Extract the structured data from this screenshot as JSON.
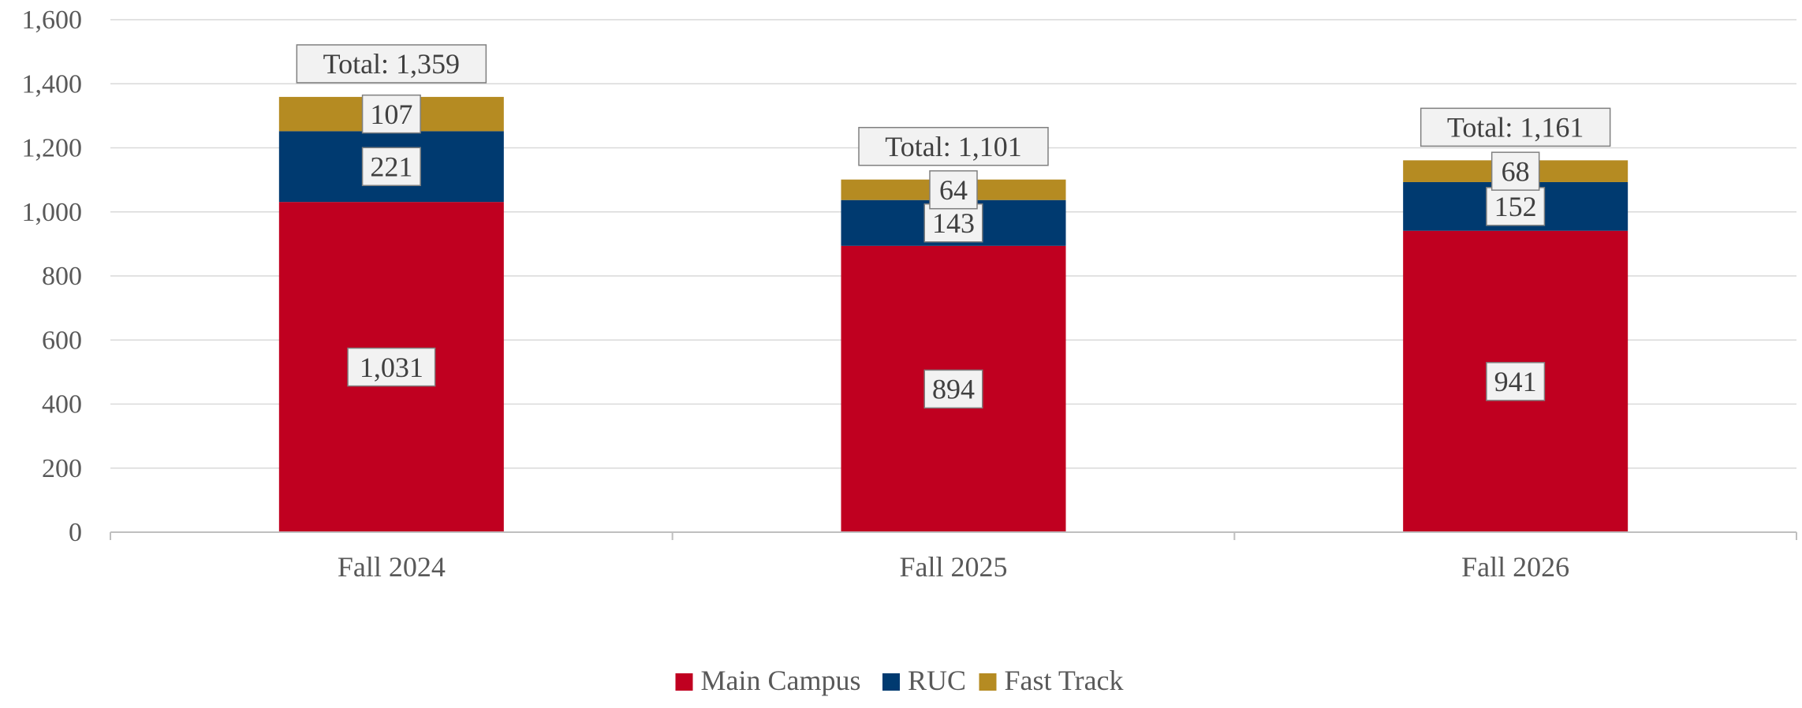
{
  "chart_data": {
    "type": "bar",
    "stacked": true,
    "title": "",
    "xlabel": "",
    "ylabel": "",
    "ylim": [
      0,
      1600
    ],
    "yticks": [
      0,
      200,
      400,
      600,
      800,
      1000,
      1200,
      1400,
      1600
    ],
    "ytick_labels": [
      "0",
      "200",
      "400",
      "600",
      "800",
      "1,000",
      "1,200",
      "1,400",
      "1,600"
    ],
    "grid": true,
    "legend_position": "bottom",
    "categories": [
      "Fall 2024",
      "Fall 2025",
      "Fall 2026"
    ],
    "series": [
      {
        "name": "Main Campus",
        "color": "#c00020",
        "values": [
          1031,
          894,
          941
        ],
        "labels": [
          "1,031",
          "894",
          "941"
        ]
      },
      {
        "name": "RUC",
        "color": "#003a70",
        "values": [
          221,
          143,
          152
        ],
        "labels": [
          "221",
          "143",
          "152"
        ]
      },
      {
        "name": "Fast Track",
        "color": "#b58b22",
        "values": [
          107,
          64,
          68
        ],
        "labels": [
          "107",
          "64",
          "68"
        ]
      }
    ],
    "totals": [
      1359,
      1101,
      1161
    ],
    "total_labels": [
      "Total: 1,359",
      "Total: 1,101",
      "Total: 1,161"
    ]
  }
}
